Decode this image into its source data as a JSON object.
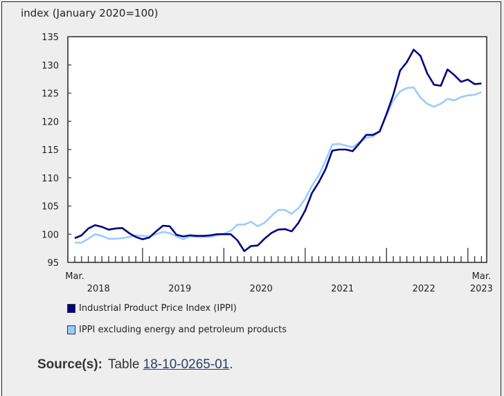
{
  "chart_data": {
    "type": "line",
    "ylabel": "index (January 2020=100)",
    "ylim": [
      95,
      135
    ],
    "yticks": [
      95,
      100,
      105,
      110,
      115,
      120,
      125,
      130,
      135
    ],
    "x_start": "2018-03",
    "x_end": "2023-03",
    "x_tick_labels": [
      {
        "month": "Mar.",
        "year": "2018",
        "at": "2018-07"
      },
      {
        "year": "2019",
        "at": "2019-07"
      },
      {
        "year": "2020",
        "at": "2020-07"
      },
      {
        "year": "2021",
        "at": "2021-07"
      },
      {
        "year": "2022",
        "at": "2022-07"
      },
      {
        "month": "Mar.",
        "year": "2023",
        "at": "2023-03"
      }
    ],
    "first_month_label": "Mar.",
    "last_month_label": "Mar.",
    "series": [
      {
        "name": "Industrial Product Price Index (IPPI)",
        "color": "#000080",
        "values": [
          99.3,
          99.8,
          101,
          101.6,
          101.3,
          100.8,
          101,
          101.1,
          100.2,
          99.5,
          99.1,
          99.4,
          100.5,
          101.5,
          101.4,
          99.9,
          99.6,
          99.8,
          99.7,
          99.7,
          99.8,
          100,
          100,
          100,
          98.9,
          97,
          97.9,
          98,
          99.2,
          100.2,
          100.8,
          100.9,
          100.5,
          102,
          104.2,
          107.3,
          109.2,
          111.5,
          114.8,
          115,
          115,
          114.7,
          116.1,
          117.6,
          117.6,
          118.2,
          121.3,
          124.7,
          129,
          130.5,
          132.7,
          131.6,
          128.5,
          126.5,
          126.3,
          129.2,
          128.2,
          127,
          127.4,
          126.6,
          126.7
        ]
      },
      {
        "name": "IPPI excluding energy and petroleum products",
        "color": "#99ccff",
        "values": [
          98.5,
          98.5,
          99.2,
          100,
          99.7,
          99.2,
          99.2,
          99.3,
          99.5,
          99.8,
          99.7,
          99.6,
          100,
          100.4,
          100.2,
          99.6,
          99.1,
          99.6,
          99.5,
          99.5,
          99.5,
          99.8,
          100.1,
          100.6,
          101.7,
          101.7,
          102.2,
          101.4,
          102,
          103.2,
          104.3,
          104.3,
          103.6,
          104.6,
          106.3,
          108.6,
          110.4,
          113,
          115.9,
          116,
          115.7,
          115.4,
          116.3,
          117.1,
          117.3,
          118.3,
          121.1,
          123.7,
          125.3,
          125.9,
          126,
          124.2,
          123.1,
          122.6,
          123.1,
          124,
          123.7,
          124.3,
          124.6,
          124.7,
          125.2
        ]
      }
    ],
    "legend_placement": "bottom-left",
    "grid": false
  },
  "source": {
    "label": "Source(s):",
    "prefix": "Table ",
    "link": "18-10-0265-01",
    "suffix": "."
  }
}
